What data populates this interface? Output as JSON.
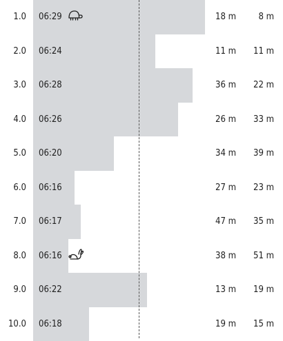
{
  "splits": [
    {
      "km": "1.0",
      "pace": "06:29",
      "pace_fraction": 0.83,
      "icon": "turtle-icon",
      "elev_gain": "18 m",
      "elev_loss": "8 m"
    },
    {
      "km": "2.0",
      "pace": "06:24",
      "pace_fraction": 0.59,
      "icon": "",
      "elev_gain": "11 m",
      "elev_loss": "11 m"
    },
    {
      "km": "3.0",
      "pace": "06:28",
      "pace_fraction": 0.77,
      "icon": "",
      "elev_gain": "36 m",
      "elev_loss": "22 m"
    },
    {
      "km": "4.0",
      "pace": "06:26",
      "pace_fraction": 0.7,
      "icon": "",
      "elev_gain": "26 m",
      "elev_loss": "33 m"
    },
    {
      "km": "5.0",
      "pace": "06:20",
      "pace_fraction": 0.39,
      "icon": "",
      "elev_gain": "34 m",
      "elev_loss": "39 m"
    },
    {
      "km": "6.0",
      "pace": "06:16",
      "pace_fraction": 0.2,
      "icon": "",
      "elev_gain": "27 m",
      "elev_loss": "23 m"
    },
    {
      "km": "7.0",
      "pace": "06:17",
      "pace_fraction": 0.23,
      "icon": "",
      "elev_gain": "47 m",
      "elev_loss": "35 m"
    },
    {
      "km": "8.0",
      "pace": "06:16",
      "pace_fraction": 0.17,
      "icon": "rabbit-icon",
      "elev_gain": "38 m",
      "elev_loss": "51 m"
    },
    {
      "km": "9.0",
      "pace": "06:22",
      "pace_fraction": 0.55,
      "icon": "",
      "elev_gain": "13 m",
      "elev_loss": "19 m"
    },
    {
      "km": "10.0",
      "pace": "06:18",
      "pace_fraction": 0.27,
      "icon": "",
      "elev_gain": "19 m",
      "elev_loss": "15 m"
    }
  ],
  "average_pace_fraction": 0.51,
  "colors": {
    "bar": "#d6d8db",
    "text": "#1e1e1e",
    "average_line": "#555555"
  }
}
